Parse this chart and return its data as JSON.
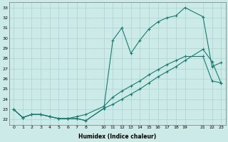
{
  "xlabel": "Humidex (Indice chaleur)",
  "background_color": "#cceae8",
  "grid_color": "#aad4d2",
  "line_color": "#1a7a6e",
  "xlim": [
    -0.5,
    23.5
  ],
  "ylim": [
    21.5,
    33.5
  ],
  "xticks": [
    0,
    1,
    2,
    3,
    4,
    5,
    6,
    7,
    8,
    10,
    11,
    12,
    13,
    14,
    15,
    16,
    17,
    18,
    19,
    21,
    22,
    23
  ],
  "yticks": [
    22,
    23,
    24,
    25,
    26,
    27,
    28,
    29,
    30,
    31,
    32,
    33
  ],
  "series1_x": [
    0,
    1,
    2,
    3,
    4,
    5,
    6,
    7,
    8,
    10,
    11,
    12,
    13,
    14,
    15,
    16,
    17,
    18,
    19,
    21,
    22,
    23
  ],
  "series1_y": [
    23.0,
    22.2,
    22.5,
    22.5,
    22.3,
    22.1,
    22.1,
    22.1,
    21.9,
    23.1,
    29.8,
    31.0,
    28.5,
    29.8,
    30.9,
    31.6,
    32.0,
    32.2,
    33.0,
    32.1,
    27.2,
    27.6
  ],
  "series2_x": [
    0,
    1,
    2,
    3,
    4,
    5,
    6,
    7,
    8,
    10,
    11,
    12,
    13,
    14,
    15,
    16,
    17,
    18,
    19,
    21,
    22,
    23
  ],
  "series2_y": [
    23.0,
    22.2,
    22.5,
    22.5,
    22.3,
    22.1,
    22.1,
    22.1,
    21.9,
    23.1,
    23.5,
    24.0,
    24.5,
    25.0,
    25.6,
    26.2,
    26.7,
    27.2,
    27.8,
    28.9,
    27.7,
    25.6
  ],
  "series3_x": [
    0,
    1,
    2,
    3,
    4,
    5,
    6,
    7,
    8,
    10,
    11,
    12,
    13,
    14,
    15,
    16,
    17,
    18,
    19,
    21,
    22,
    23
  ],
  "series3_y": [
    23.0,
    22.2,
    22.5,
    22.5,
    22.3,
    22.1,
    22.1,
    22.3,
    22.5,
    23.3,
    24.2,
    24.8,
    25.3,
    25.8,
    26.4,
    26.9,
    27.4,
    27.8,
    28.2,
    28.2,
    25.8,
    25.6
  ]
}
